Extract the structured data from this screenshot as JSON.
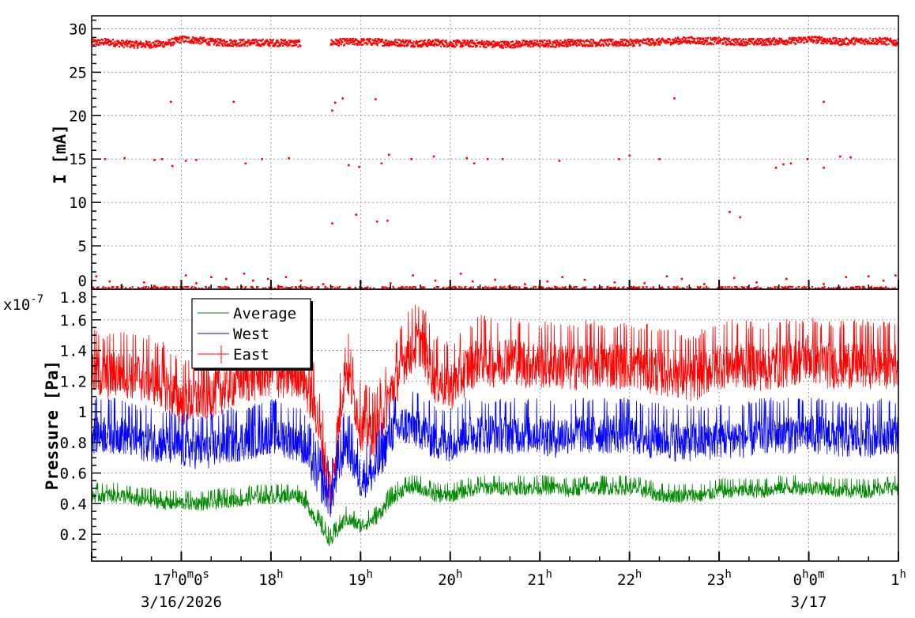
{
  "chart_data": [
    {
      "type": "scatter",
      "ylabel": "I [mA]",
      "ylim": [
        0,
        31.5
      ],
      "xlim": [
        "16:00",
        "01:00"
      ],
      "yticks": [
        "0",
        "5",
        "10",
        "15",
        "20",
        "25",
        "30"
      ],
      "grid": true,
      "color": "#ff0000",
      "series": [
        {
          "start": "16:00",
          "interval_min": 10,
          "values": [
            28.4,
            28.5,
            28.3,
            28.2,
            28.2,
            28.3,
            28.8,
            28.7,
            28.5,
            28.4,
            28.4,
            28.4,
            28.4,
            28.4,
            28.3,
            null,
            28.4,
            28.5,
            28.5,
            28.5,
            28.4,
            28.4,
            28.3,
            28.4,
            28.3,
            28.3,
            28.3,
            28.2,
            28.2,
            28.3,
            28.3,
            28.3,
            28.4,
            28.4,
            28.4,
            28.4,
            28.4,
            28.5,
            28.5,
            28.6,
            28.7,
            28.6,
            28.6,
            28.5,
            28.5,
            28.5,
            28.6,
            28.6,
            28.8,
            28.7,
            28.5,
            28.6,
            28.6,
            28.6,
            28.4
          ]
        }
      ],
      "baseline_value": 0.1,
      "outliers": [
        [
          "16:09",
          15.0
        ],
        [
          "16:22",
          15.1
        ],
        [
          "16:53",
          21.6
        ],
        [
          "16:42",
          14.9
        ],
        [
          "16:47",
          15.0
        ],
        [
          "16:54",
          14.2
        ],
        [
          "17:03",
          14.8
        ],
        [
          "17:10",
          14.9
        ],
        [
          "17:35",
          21.6
        ],
        [
          "17:43",
          14.5
        ],
        [
          "17:54",
          15.0
        ],
        [
          "18:12",
          15.1
        ],
        [
          "18:41",
          20.6
        ],
        [
          "18:43",
          21.5
        ],
        [
          "18:48",
          22.0
        ],
        [
          "18:41",
          7.6
        ],
        [
          "18:52",
          14.3
        ],
        [
          "18:57",
          8.6
        ],
        [
          "18:59",
          14.1
        ],
        [
          "19:10",
          21.9
        ],
        [
          "19:11",
          7.8
        ],
        [
          "19:18",
          7.9
        ],
        [
          "19:19",
          15.5
        ],
        [
          "19:14",
          14.5
        ],
        [
          "19:34",
          15.0
        ],
        [
          "19:49",
          15.3
        ],
        [
          "20:11",
          15.1
        ],
        [
          "20:16",
          14.5
        ],
        [
          "20:25",
          15.0
        ],
        [
          "20:35",
          15.0
        ],
        [
          "21:13",
          14.8
        ],
        [
          "21:53",
          15.0
        ],
        [
          "22:00",
          15.4
        ],
        [
          "22:20",
          15.0
        ],
        [
          "22:30",
          22.0
        ],
        [
          "23:07",
          8.9
        ],
        [
          "23:14",
          8.3
        ],
        [
          "23:38",
          14.0
        ],
        [
          "23:43",
          14.4
        ],
        [
          "23:48",
          14.5
        ],
        [
          "23:59",
          15.0
        ],
        [
          "00:10",
          14.0
        ],
        [
          "00:10",
          21.6
        ],
        [
          "00:21",
          15.3
        ],
        [
          "00:28",
          15.2
        ],
        [
          "16:03",
          1.5
        ],
        [
          "16:12",
          0.9
        ],
        [
          "16:20",
          0.5
        ],
        [
          "16:35",
          0.8
        ],
        [
          "16:42",
          0.4
        ],
        [
          "17:03",
          1.6
        ],
        [
          "17:10",
          0.7
        ],
        [
          "17:20",
          1.4
        ],
        [
          "17:30",
          1.2
        ],
        [
          "17:42",
          1.8
        ],
        [
          "17:48",
          1.0
        ],
        [
          "17:58",
          1.2
        ],
        [
          "18:05",
          0.4
        ],
        [
          "18:10",
          1.4
        ],
        [
          "18:20",
          1.0
        ],
        [
          "18:35",
          0.6
        ],
        [
          "19:00",
          0.8
        ],
        [
          "19:20",
          0.7
        ],
        [
          "19:35",
          1.6
        ],
        [
          "19:50",
          1.0
        ],
        [
          "20:07",
          1.8
        ],
        [
          "20:15",
          0.9
        ],
        [
          "20:30",
          1.1
        ],
        [
          "20:50",
          0.6
        ],
        [
          "21:05",
          0.9
        ],
        [
          "21:15",
          1.4
        ],
        [
          "21:30",
          1.1
        ],
        [
          "21:50",
          0.8
        ],
        [
          "22:10",
          0.7
        ],
        [
          "22:25",
          1.5
        ],
        [
          "22:35",
          1.2
        ],
        [
          "22:50",
          0.6
        ],
        [
          "23:10",
          1.3
        ],
        [
          "23:25",
          0.8
        ],
        [
          "23:45",
          1.2
        ],
        [
          "00:10",
          0.6
        ],
        [
          "00:25",
          1.4
        ],
        [
          "00:40",
          1.5
        ],
        [
          "00:50",
          1.0
        ],
        [
          "00:58",
          1.6
        ]
      ]
    },
    {
      "type": "line",
      "ylabel": "Pressure [Pa]",
      "yscale_label": "x10",
      "yscale_exp": "-7",
      "ylim": [
        0.025,
        1.8
      ],
      "yticks": [
        "0.2",
        "0.4",
        "0.6",
        "0.8",
        "1",
        "1.2",
        "1.4",
        "1.6",
        "1.8"
      ],
      "xlim": [
        "16:00",
        "01:00"
      ],
      "xticks": [
        {
          "time": "17:00",
          "main": "17",
          "sup": "h",
          "main2": "0",
          "sup2": "m",
          "main3": "0",
          "sup3": "s"
        },
        {
          "time": "18:00",
          "main": "18",
          "sup": "h"
        },
        {
          "time": "19:00",
          "main": "19",
          "sup": "h"
        },
        {
          "time": "20:00",
          "main": "20",
          "sup": "h"
        },
        {
          "time": "21:00",
          "main": "21",
          "sup": "h"
        },
        {
          "time": "22:00",
          "main": "22",
          "sup": "h"
        },
        {
          "time": "23:00",
          "main": "23",
          "sup": "h"
        },
        {
          "time": "00:00",
          "main": "0",
          "sup": "h",
          "main2": "0",
          "sup2": "m"
        },
        {
          "time": "01:00",
          "main": "1",
          "sup": "h"
        }
      ],
      "date_labels": [
        {
          "time": "17:00",
          "text": "3/16/2026"
        },
        {
          "time": "00:00",
          "text": "3/17"
        }
      ],
      "grid": true,
      "legend": "top-left",
      "start": "16:00",
      "interval_min": 10,
      "series": [
        {
          "name": "East",
          "color": "#ff0000",
          "values": [
            1.25,
            1.22,
            1.25,
            1.22,
            1.2,
            1.15,
            1.05,
            1.07,
            1.1,
            1.15,
            1.2,
            1.22,
            1.25,
            1.22,
            1.25,
            1.0,
            0.45,
            1.3,
            0.9,
            0.85,
            1.1,
            1.35,
            1.45,
            1.2,
            1.15,
            1.25,
            1.35,
            1.3,
            1.35,
            1.3,
            1.3,
            1.3,
            1.28,
            1.3,
            1.3,
            1.3,
            1.3,
            1.28,
            1.25,
            1.25,
            1.2,
            1.25,
            1.3,
            1.3,
            1.3,
            1.28,
            1.3,
            1.32,
            1.35,
            1.3,
            1.3,
            1.3,
            1.3,
            1.3,
            1.3
          ]
        },
        {
          "name": "West",
          "color": "#0000ff",
          "values": [
            0.85,
            0.85,
            0.85,
            0.8,
            0.8,
            0.78,
            0.75,
            0.75,
            0.75,
            0.78,
            0.8,
            0.82,
            0.85,
            0.82,
            0.8,
            0.6,
            0.42,
            0.8,
            0.55,
            0.6,
            0.85,
            0.9,
            0.88,
            0.8,
            0.8,
            0.85,
            0.85,
            0.85,
            0.85,
            0.85,
            0.85,
            0.82,
            0.85,
            0.85,
            0.85,
            0.85,
            0.85,
            0.82,
            0.82,
            0.8,
            0.8,
            0.8,
            0.82,
            0.82,
            0.82,
            0.85,
            0.85,
            0.85,
            0.85,
            0.85,
            0.82,
            0.82,
            0.82,
            0.85,
            0.85
          ]
        },
        {
          "name": "Average",
          "color": "#008800",
          "values": [
            0.45,
            0.45,
            0.45,
            0.42,
            0.42,
            0.4,
            0.4,
            0.4,
            0.4,
            0.42,
            0.42,
            0.44,
            0.44,
            0.45,
            0.45,
            0.3,
            0.15,
            0.3,
            0.25,
            0.3,
            0.42,
            0.5,
            0.5,
            0.45,
            0.45,
            0.48,
            0.5,
            0.5,
            0.5,
            0.5,
            0.5,
            0.5,
            0.48,
            0.5,
            0.5,
            0.5,
            0.5,
            0.48,
            0.45,
            0.45,
            0.45,
            0.45,
            0.48,
            0.48,
            0.48,
            0.48,
            0.5,
            0.5,
            0.5,
            0.5,
            0.48,
            0.48,
            0.48,
            0.5,
            0.5
          ]
        }
      ],
      "legend_order": [
        "Average",
        "West",
        "East"
      ]
    }
  ]
}
